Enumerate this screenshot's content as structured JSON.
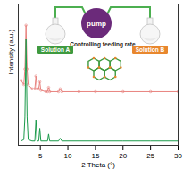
{
  "chart_data": {
    "type": "line",
    "x_label": "2 Theta (°)",
    "y_label": "Intensity (a.u.)",
    "xlim": [
      1,
      30
    ],
    "xticks": [
      5,
      10,
      15,
      20,
      25,
      30
    ],
    "ylim": [
      0,
      100
    ],
    "tick_labels": "x",
    "x": [
      1.5,
      2.0,
      2.2,
      2.4,
      2.6,
      2.8,
      3.5,
      4.0,
      4.2,
      4.4,
      4.7,
      4.9,
      5.1,
      6.0,
      6.3,
      6.5,
      6.7,
      8.3,
      8.6,
      8.9,
      12,
      15,
      20,
      25,
      30
    ],
    "series": [
      {
        "color": "#e8837f",
        "marker": "circle",
        "values": [
          46,
          43,
          54,
          85,
          54,
          43,
          40,
          40,
          49,
          40,
          40,
          45,
          39,
          38,
          38,
          41,
          38,
          38,
          40,
          38,
          38,
          38,
          38,
          38,
          38
        ]
      },
      {
        "color": "#1a9a4a",
        "values": [
          3,
          4,
          20,
          75,
          20,
          4,
          3,
          3,
          18,
          3,
          3,
          12,
          3,
          3,
          3,
          8,
          3,
          3,
          5,
          3,
          3,
          3,
          3,
          3,
          3
        ]
      }
    ],
    "annotations": [
      "Solution A",
      "Solution B",
      "pump",
      "Controlling feeding rate"
    ]
  }
}
